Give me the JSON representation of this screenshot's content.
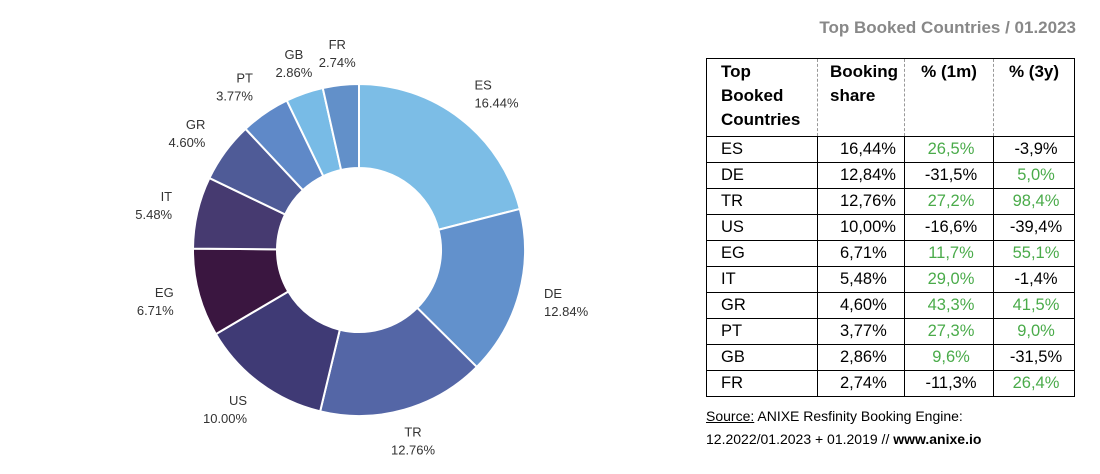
{
  "chart_data": {
    "type": "pie",
    "variant": "donut",
    "categories": [
      "ES",
      "DE",
      "TR",
      "US",
      "EG",
      "IT",
      "GR",
      "PT",
      "GB",
      "FR"
    ],
    "values": [
      16.44,
      12.84,
      12.76,
      10.0,
      6.71,
      5.48,
      4.6,
      3.77,
      2.86,
      2.74
    ],
    "labels": [
      "16.44%",
      "12.84%",
      "12.76%",
      "10.00%",
      "6.71%",
      "5.48%",
      "4.60%",
      "3.77%",
      "2.86%",
      "2.74%"
    ],
    "colors": [
      "#7cbde6",
      "#6291cc",
      "#5466a6",
      "#3f3a75",
      "#3a1640",
      "#463a70",
      "#4f5b97",
      "#5f89c8",
      "#78bbe6",
      "#6290c9"
    ]
  },
  "table": {
    "title": "Top Booked Countries / 01.2023",
    "headers": {
      "country": [
        "Top",
        "Booked",
        "Countries"
      ],
      "share": [
        "Booking",
        "share"
      ],
      "m": "% (1m)",
      "y": "% (3y)"
    },
    "rows": [
      {
        "country": "ES",
        "share": "16,44%",
        "m": "26,5%",
        "m_pos": true,
        "y": "-3,9%",
        "y_pos": false
      },
      {
        "country": "DE",
        "share": "12,84%",
        "m": "-31,5%",
        "m_pos": false,
        "y": "5,0%",
        "y_pos": true
      },
      {
        "country": "TR",
        "share": "12,76%",
        "m": "27,2%",
        "m_pos": true,
        "y": "98,4%",
        "y_pos": true
      },
      {
        "country": "US",
        "share": "10,00%",
        "m": "-16,6%",
        "m_pos": false,
        "y": "-39,4%",
        "y_pos": false
      },
      {
        "country": "EG",
        "share": "6,71%",
        "m": "11,7%",
        "m_pos": true,
        "y": "55,1%",
        "y_pos": true
      },
      {
        "country": "IT",
        "share": "5,48%",
        "m": "29,0%",
        "m_pos": true,
        "y": "-1,4%",
        "y_pos": false
      },
      {
        "country": "GR",
        "share": "4,60%",
        "m": "43,3%",
        "m_pos": true,
        "y": "41,5%",
        "y_pos": true
      },
      {
        "country": "PT",
        "share": "3,77%",
        "m": "27,3%",
        "m_pos": true,
        "y": "9,0%",
        "y_pos": true
      },
      {
        "country": "GB",
        "share": "2,86%",
        "m": "9,6%",
        "m_pos": true,
        "y": "-31,5%",
        "y_pos": false
      },
      {
        "country": "FR",
        "share": "2,74%",
        "m": "-11,3%",
        "m_pos": false,
        "y": "26,4%",
        "y_pos": true
      }
    ]
  },
  "source": {
    "label": "Source:",
    "text": "ANIXE Resfinity Booking Engine:",
    "line2": "12.2022/01.2023 + 01.2019 // ",
    "site": "www.anixe.io"
  }
}
